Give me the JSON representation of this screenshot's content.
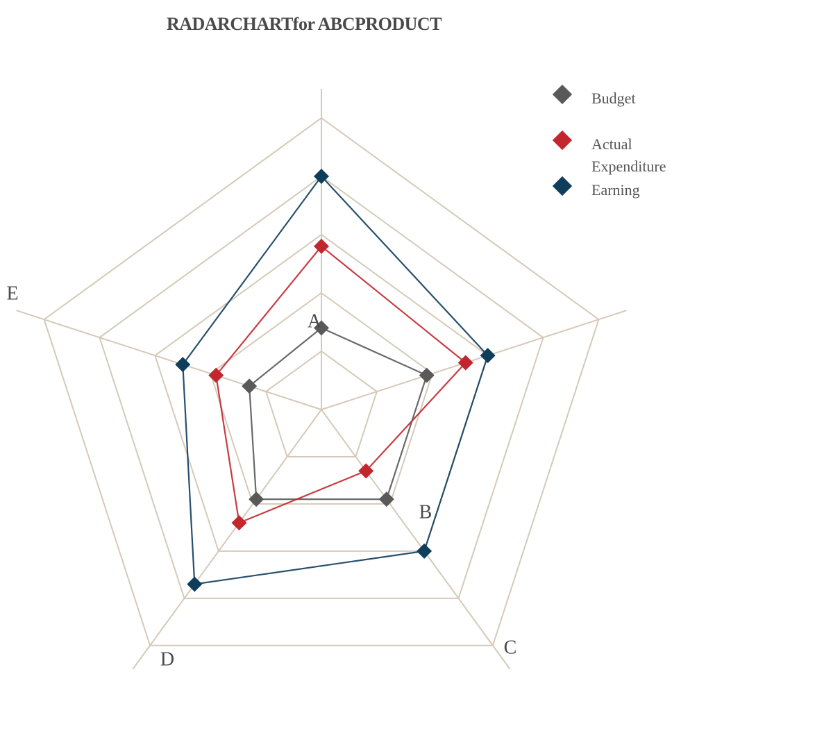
{
  "chart_data": {
    "type": "radar",
    "title": "RADARCHARTfor ABCPRODUCT",
    "categories": [
      "A",
      "B",
      "C",
      "D",
      "E"
    ],
    "rlim": [
      0,
      5
    ],
    "rings": 5,
    "grid": true,
    "legend_position": "top-right",
    "series": [
      {
        "name": "Budget",
        "values": [
          1.4,
          1.9,
          1.9,
          1.9,
          1.3
        ],
        "color": "#595959"
      },
      {
        "name": "Actual\nExpenditure",
        "values": [
          2.8,
          2.6,
          1.3,
          2.4,
          1.9
        ],
        "color": "#c1272d"
      },
      {
        "name": "Earning",
        "values": [
          4.0,
          3.0,
          3.0,
          3.7,
          2.5
        ],
        "color": "#0f3d5c"
      }
    ],
    "colors": {
      "grid": "#d6c9b8",
      "text": "#4a4a4a"
    }
  }
}
